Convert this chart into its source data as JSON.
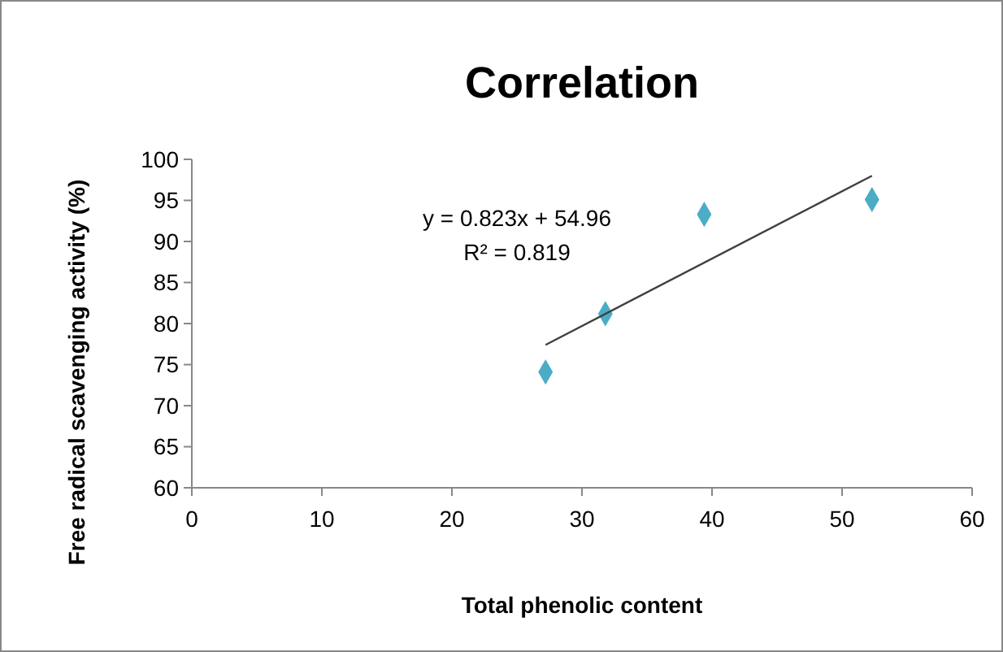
{
  "chart_data": {
    "type": "scatter",
    "title": "Correlation",
    "xlabel": "Total phenolic content",
    "ylabel": "Free radical scavenging activity (%)",
    "series": [
      {
        "color": "#4bacc6",
        "marker": "diamond",
        "x": [
          27.2,
          31.8,
          39.4,
          52.3
        ],
        "values": [
          74.1,
          81.2,
          93.3,
          95.1
        ]
      },
      {
        "type": "line",
        "color": "#404040",
        "x": [
          27.2,
          52.3
        ],
        "values": [
          77.4,
          98.0
        ]
      }
    ],
    "annotations": [
      "y = 0.823x + 54.96",
      "R² = 0.819"
    ],
    "xlim": [
      0,
      60
    ],
    "xticks": [
      0,
      10,
      20,
      30,
      40,
      50,
      60
    ],
    "ylim": [
      60,
      100
    ],
    "yticks": [
      60,
      65,
      70,
      75,
      80,
      85,
      90,
      95,
      100
    ],
    "grid": false
  }
}
